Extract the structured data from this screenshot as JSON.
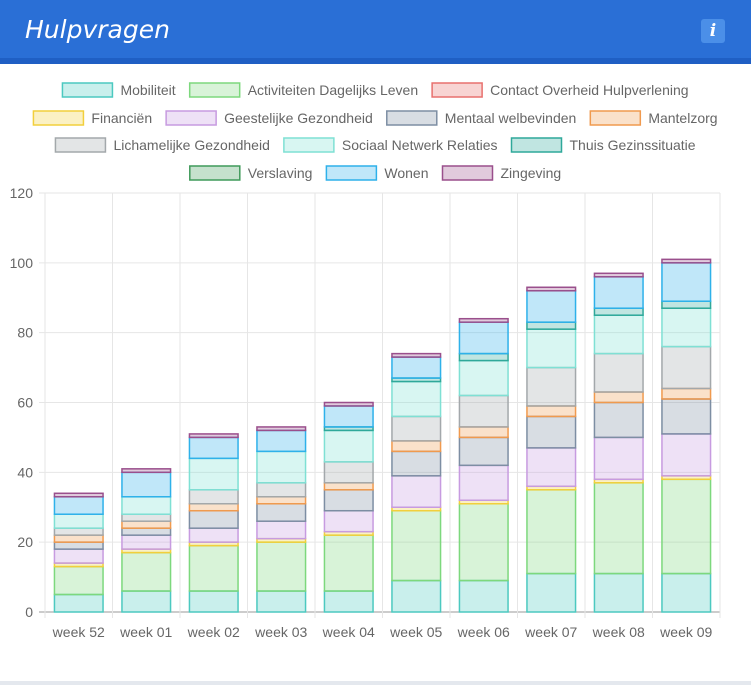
{
  "panel": {
    "title": "Hulpvragen",
    "info_label": "i",
    "info_icon": "info-icon"
  },
  "chart_data": {
    "type": "bar",
    "stacked": true,
    "categories": [
      "week 52",
      "week 01",
      "week 02",
      "week 03",
      "week 04",
      "week 05",
      "week 06",
      "week 07",
      "week 08",
      "week 09"
    ],
    "ylim": [
      0,
      120
    ],
    "yticks": [
      0,
      20,
      40,
      60,
      80,
      100,
      120
    ],
    "grid": true,
    "legend_position": "top",
    "series": [
      {
        "name": "Mobiliteit",
        "color": "#4cc9c0",
        "values": [
          5,
          6,
          6,
          6,
          6,
          9,
          9,
          11,
          11,
          11
        ]
      },
      {
        "name": "Activiteiten Dagelijks Leven",
        "color": "#7dd87d",
        "values": [
          8,
          11,
          13,
          14,
          16,
          20,
          22,
          24,
          26,
          27
        ]
      },
      {
        "name": "Contact Overheid  Hulpverlening",
        "color": "#e8706e",
        "values": [
          0,
          0,
          0,
          0,
          0,
          0,
          0,
          0,
          0,
          0
        ]
      },
      {
        "name": "Financiën",
        "color": "#f2cf3c",
        "values": [
          1,
          1,
          1,
          1,
          1,
          1,
          1,
          1,
          1,
          1
        ]
      },
      {
        "name": "Geestelijke Gezondheid",
        "color": "#c79be0",
        "values": [
          4,
          4,
          4,
          5,
          6,
          9,
          10,
          11,
          12,
          12
        ]
      },
      {
        "name": "Mentaal welbevinden",
        "color": "#7d8ea3",
        "values": [
          2,
          2,
          5,
          5,
          6,
          7,
          8,
          9,
          10,
          10
        ]
      },
      {
        "name": "Mantelzorg",
        "color": "#f09a4e",
        "values": [
          2,
          2,
          2,
          2,
          2,
          3,
          3,
          3,
          3,
          3
        ]
      },
      {
        "name": "Lichamelijke Gezondheid",
        "color": "#a3a8ab",
        "values": [
          2,
          2,
          4,
          4,
          6,
          7,
          9,
          11,
          11,
          12
        ]
      },
      {
        "name": "Sociaal Netwerk  Relaties",
        "color": "#7fe0d4",
        "values": [
          4,
          5,
          9,
          9,
          9,
          10,
          10,
          11,
          11,
          11
        ]
      },
      {
        "name": "Thuis  Gezinssituatie",
        "color": "#2fa89a",
        "values": [
          0,
          0,
          0,
          0,
          1,
          1,
          2,
          2,
          2,
          2
        ]
      },
      {
        "name": "Verslaving",
        "color": "#3f9a5a",
        "values": [
          0,
          0,
          0,
          0,
          0,
          0,
          0,
          0,
          0,
          0
        ]
      },
      {
        "name": "Wonen",
        "color": "#2eb1ea",
        "values": [
          5,
          7,
          6,
          6,
          6,
          6,
          9,
          9,
          9,
          11
        ]
      },
      {
        "name": "Zingeving",
        "color": "#9a4f8c",
        "values": [
          1,
          1,
          1,
          1,
          1,
          1,
          1,
          1,
          1,
          1
        ]
      }
    ]
  }
}
